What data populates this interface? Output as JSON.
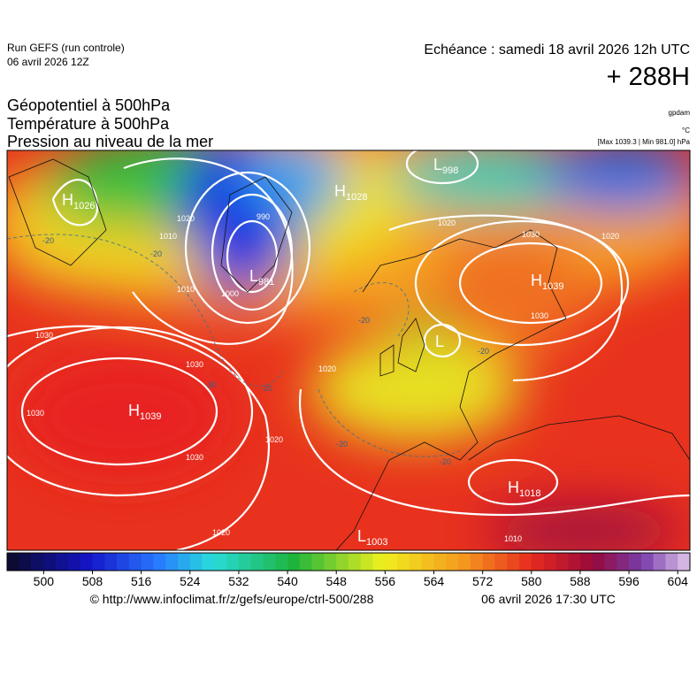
{
  "header": {
    "run": "Run GEFS (run controle)",
    "run_date": "06 avril 2026 12Z",
    "echeance": "Echéance : samedi 18 avril 2026 12h UTC",
    "horizon": "+ 288H",
    "fields": [
      "Géopotentiel à 500hPa",
      "Température à 500hPa",
      "Pression au niveau de la mer"
    ],
    "units": [
      "gpdam",
      "°C",
      "[Max 1039.3 | Min 981.0] hPa"
    ]
  },
  "map": {
    "centers": [
      {
        "kind": "H",
        "value": "1026"
      },
      {
        "kind": "L",
        "value": "998"
      },
      {
        "kind": "H",
        "value": "1028"
      },
      {
        "kind": "L",
        "value": "981"
      },
      {
        "kind": "H",
        "value": "1039"
      },
      {
        "kind": "L"
      },
      {
        "kind": "H",
        "value": "1039"
      },
      {
        "kind": "H",
        "value": "1018"
      },
      {
        "kind": "L",
        "value": "1003"
      }
    ],
    "isobar_labels": [
      "1020",
      "1010",
      "990",
      "1000",
      "1030",
      "1020",
      "1030",
      "1030",
      "1020",
      "1020",
      "1030",
      "1020",
      "1010",
      "1020",
      "1030",
      "1010",
      "1030"
    ],
    "temperature_labels": [
      "-20",
      "-20",
      "-30",
      "-20",
      "-20",
      "-20",
      "-20",
      "-20"
    ]
  },
  "colorbar": {
    "lim": [
      494,
      606
    ],
    "ticks": [
      500,
      508,
      516,
      524,
      532,
      540,
      548,
      556,
      564,
      572,
      580,
      588,
      596,
      604
    ]
  },
  "footer": {
    "source": "© http://www.infoclimat.fr/z/gefs/europe/ctrl-500/288",
    "issued": "06 avril 2026 17:30 UTC"
  }
}
